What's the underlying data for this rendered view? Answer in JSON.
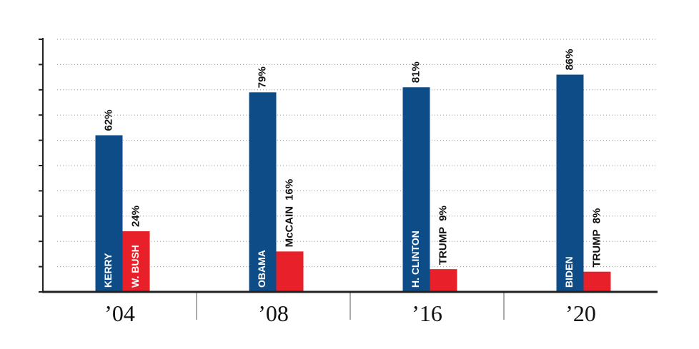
{
  "chart_data": {
    "type": "bar",
    "categories": [
      "’04",
      "’08",
      "’16",
      "’20"
    ],
    "series": [
      {
        "color": "#0d4c87",
        "values": [
          62,
          79,
          81,
          86
        ],
        "value_labels": [
          "62%",
          "79%",
          "81%",
          "86%"
        ],
        "bar_labels": [
          "KERRY",
          "OBAMA",
          "H. CLINTON",
          "BIDEN"
        ]
      },
      {
        "color": "#e8202a",
        "values": [
          24,
          16,
          9,
          8
        ],
        "value_labels": [
          "24%",
          "16%",
          "9%",
          "8%"
        ],
        "bar_labels": [
          "W. BUSH",
          "McCAIN",
          "TRUMP",
          "TRUMP"
        ]
      }
    ],
    "ylim": [
      0,
      100
    ],
    "yticks": [
      0,
      10,
      20,
      30,
      40,
      50,
      60,
      70,
      80,
      90,
      100
    ],
    "grid": true
  }
}
